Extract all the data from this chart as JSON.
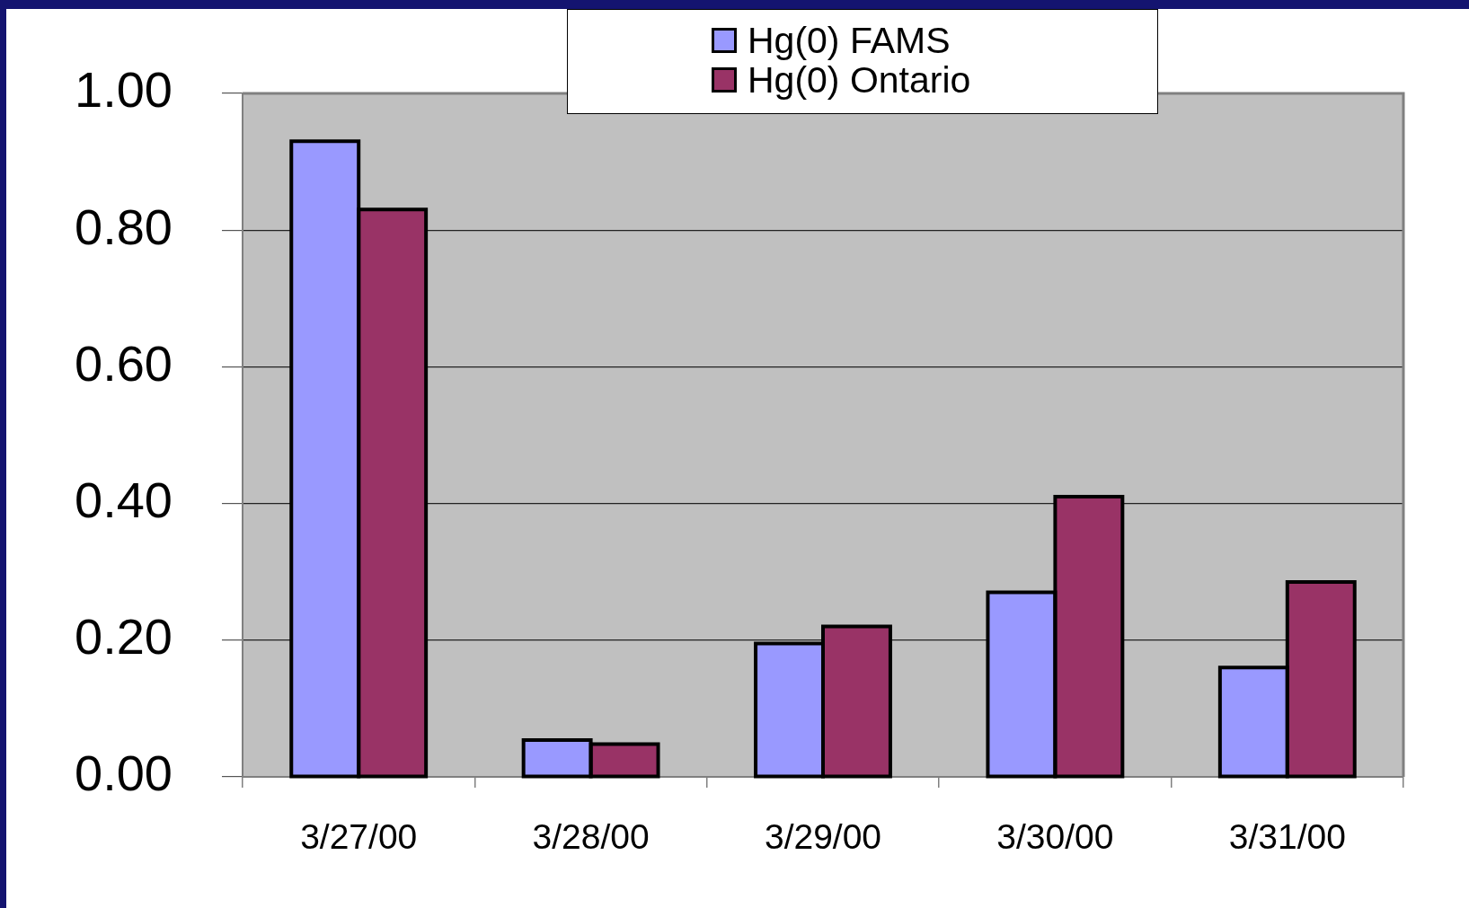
{
  "chart_data": {
    "type": "bar",
    "categories": [
      "3/27/00",
      "3/28/00",
      "3/29/00",
      "3/30/00",
      "3/31/00"
    ],
    "series": [
      {
        "name": "Hg(0) FAMS",
        "color": "#9999ff",
        "values": [
          0.93,
          0.054,
          0.195,
          0.27,
          0.16
        ]
      },
      {
        "name": "Hg(0) Ontario",
        "color": "#993366",
        "values": [
          0.83,
          0.048,
          0.22,
          0.41,
          0.285
        ]
      }
    ],
    "ylim": [
      0,
      1
    ],
    "yticks": [
      {
        "value": 0,
        "label": "0.00"
      },
      {
        "value": 0.2,
        "label": "0.20"
      },
      {
        "value": 0.4,
        "label": "0.40"
      },
      {
        "value": 0.6,
        "label": "0.60"
      },
      {
        "value": 0.8,
        "label": "0.80"
      },
      {
        "value": 1,
        "label": "1.00"
      }
    ],
    "grid": "y",
    "legend": "top"
  }
}
